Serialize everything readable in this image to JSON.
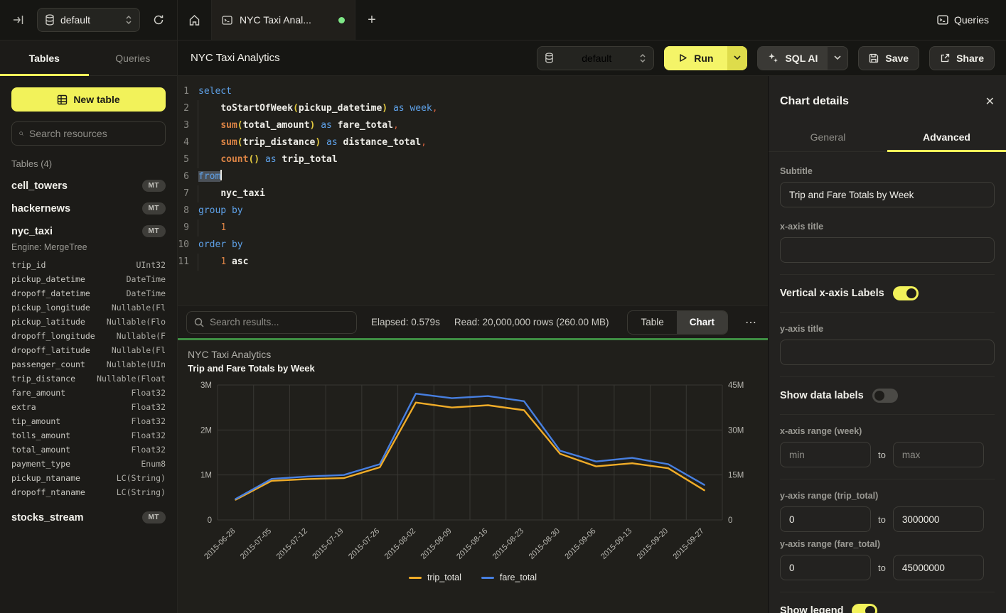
{
  "topbar": {
    "db_selector": "default",
    "tab_title": "NYC Taxi Anal...",
    "queries_label": "Queries",
    "plus_glyph": "+"
  },
  "icons": {
    "close_glyph": "✕",
    "ellipsis_glyph": "⋯"
  },
  "sidebar": {
    "tabs": {
      "tables": "Tables",
      "queries": "Queries"
    },
    "new_table_label": "New table",
    "search_placeholder": "Search resources",
    "section_label": "Tables (4)",
    "tables": [
      {
        "name": "cell_towers",
        "badge": "MT"
      },
      {
        "name": "hackernews",
        "badge": "MT"
      },
      {
        "name": "nyc_taxi",
        "badge": "MT",
        "engine": "Engine: MergeTree",
        "columns": [
          {
            "name": "trip_id",
            "type": "UInt32"
          },
          {
            "name": "pickup_datetime",
            "type": "DateTime"
          },
          {
            "name": "dropoff_datetime",
            "type": "DateTime"
          },
          {
            "name": "pickup_longitude",
            "type": "Nullable(Fl"
          },
          {
            "name": "pickup_latitude",
            "type": "Nullable(Flo"
          },
          {
            "name": "dropoff_longitude",
            "type": "Nullable(F"
          },
          {
            "name": "dropoff_latitude",
            "type": "Nullable(Fl"
          },
          {
            "name": "passenger_count",
            "type": "Nullable(UIn"
          },
          {
            "name": "trip_distance",
            "type": "Nullable(Float"
          },
          {
            "name": "fare_amount",
            "type": "Float32"
          },
          {
            "name": "extra",
            "type": "Float32"
          },
          {
            "name": "tip_amount",
            "type": "Float32"
          },
          {
            "name": "tolls_amount",
            "type": "Float32"
          },
          {
            "name": "total_amount",
            "type": "Float32"
          },
          {
            "name": "payment_type",
            "type": "Enum8"
          },
          {
            "name": "pickup_ntaname",
            "type": "LC(String)"
          },
          {
            "name": "dropoff_ntaname",
            "type": "LC(String)"
          }
        ]
      },
      {
        "name": "stocks_stream",
        "badge": "MT"
      }
    ]
  },
  "header": {
    "title": "NYC Taxi Analytics",
    "db_selector": "default",
    "run_label": "Run",
    "sql_ai_label": "SQL AI",
    "save_label": "Save",
    "share_label": "Share"
  },
  "editor": {
    "lines": [
      {
        "num": "1",
        "g": false,
        "tokens": [
          {
            "t": "select",
            "c": "kw"
          }
        ]
      },
      {
        "num": "2",
        "g": true,
        "tokens": [
          {
            "t": "    ",
            "c": "ws"
          },
          {
            "t": "toStartOfWeek",
            "c": "id"
          },
          {
            "t": "(",
            "c": "br"
          },
          {
            "t": "pickup_datetime",
            "c": "id"
          },
          {
            "t": ")",
            "c": "br"
          },
          {
            "t": " ",
            "c": "ws"
          },
          {
            "t": "as",
            "c": "kw"
          },
          {
            "t": " ",
            "c": "ws"
          },
          {
            "t": "week",
            "c": "kw"
          },
          {
            "t": ",",
            "c": "cm"
          }
        ]
      },
      {
        "num": "3",
        "g": true,
        "tokens": [
          {
            "t": "    ",
            "c": "ws"
          },
          {
            "t": "sum",
            "c": "fn"
          },
          {
            "t": "(",
            "c": "br"
          },
          {
            "t": "total_amount",
            "c": "id"
          },
          {
            "t": ")",
            "c": "br"
          },
          {
            "t": " ",
            "c": "ws"
          },
          {
            "t": "as",
            "c": "kw"
          },
          {
            "t": " ",
            "c": "ws"
          },
          {
            "t": "fare_total",
            "c": "id"
          },
          {
            "t": ",",
            "c": "cm"
          }
        ]
      },
      {
        "num": "4",
        "g": true,
        "tokens": [
          {
            "t": "    ",
            "c": "ws"
          },
          {
            "t": "sum",
            "c": "fn"
          },
          {
            "t": "(",
            "c": "br"
          },
          {
            "t": "trip_distance",
            "c": "id"
          },
          {
            "t": ")",
            "c": "br"
          },
          {
            "t": " ",
            "c": "ws"
          },
          {
            "t": "as",
            "c": "kw"
          },
          {
            "t": " ",
            "c": "ws"
          },
          {
            "t": "distance_total",
            "c": "id"
          },
          {
            "t": ",",
            "c": "cm"
          }
        ]
      },
      {
        "num": "5",
        "g": true,
        "tokens": [
          {
            "t": "    ",
            "c": "ws"
          },
          {
            "t": "count",
            "c": "fn"
          },
          {
            "t": "()",
            "c": "br"
          },
          {
            "t": " ",
            "c": "ws"
          },
          {
            "t": "as",
            "c": "kw"
          },
          {
            "t": " ",
            "c": "ws"
          },
          {
            "t": "trip_total",
            "c": "id"
          }
        ]
      },
      {
        "num": "6",
        "g": false,
        "tokens": [
          {
            "t": "from",
            "c": "kw sel"
          },
          {
            "t": "",
            "c": "caret"
          }
        ]
      },
      {
        "num": "7",
        "g": true,
        "tokens": [
          {
            "t": "    ",
            "c": "ws"
          },
          {
            "t": "nyc_taxi",
            "c": "id"
          }
        ]
      },
      {
        "num": "8",
        "g": false,
        "tokens": [
          {
            "t": "group by",
            "c": "kw"
          }
        ]
      },
      {
        "num": "9",
        "g": true,
        "tokens": [
          {
            "t": "    ",
            "c": "ws"
          },
          {
            "t": "1",
            "c": "nm"
          }
        ]
      },
      {
        "num": "10",
        "g": false,
        "tokens": [
          {
            "t": "order by",
            "c": "kw"
          }
        ]
      },
      {
        "num": "11",
        "g": true,
        "tokens": [
          {
            "t": "    ",
            "c": "ws"
          },
          {
            "t": "1",
            "c": "nm"
          },
          {
            "t": " ",
            "c": "ws"
          },
          {
            "t": "asc",
            "c": "id"
          }
        ]
      }
    ]
  },
  "results_bar": {
    "search_placeholder": "Search results...",
    "elapsed": "Elapsed: 0.579s",
    "read": "Read: 20,000,000 rows (260.00 MB)",
    "table_label": "Table",
    "chart_label": "Chart",
    "active_view": "Chart"
  },
  "chart_data": {
    "type": "line",
    "title": "NYC Taxi Analytics",
    "subtitle": "Trip and Fare Totals by Week",
    "x": [
      "2015-06-28",
      "2015-07-05",
      "2015-07-12",
      "2015-07-19",
      "2015-07-26",
      "2015-08-02",
      "2015-08-09",
      "2015-08-16",
      "2015-08-23",
      "2015-08-30",
      "2015-09-06",
      "2015-09-13",
      "2015-09-20",
      "2015-09-27"
    ],
    "series": [
      {
        "name": "trip_total",
        "color": "#f0ac28",
        "axis": "left",
        "values": [
          450000,
          870000,
          910000,
          930000,
          1170000,
          2610000,
          2500000,
          2550000,
          2440000,
          1470000,
          1190000,
          1260000,
          1150000,
          660000
        ]
      },
      {
        "name": "fare_total",
        "color": "#477fe0",
        "axis": "right",
        "values": [
          7000000,
          13700000,
          14500000,
          15000000,
          18600000,
          42100000,
          40600000,
          41300000,
          39600000,
          23100000,
          19500000,
          20700000,
          18600000,
          11700000
        ]
      }
    ],
    "left_axis": {
      "min": 0,
      "max": 3000000,
      "ticks": [
        0,
        1000000,
        2000000,
        3000000
      ],
      "tick_labels": [
        "0",
        "1M",
        "2M",
        "3M"
      ]
    },
    "right_axis": {
      "min": 0,
      "max": 45000000,
      "ticks": [
        0,
        15000000,
        30000000,
        45000000
      ],
      "tick_labels": [
        "0",
        "15M",
        "30M",
        "45M"
      ]
    },
    "x_labels_rotated": true,
    "grid": true,
    "legend_position": "bottom"
  },
  "panel": {
    "title": "Chart details",
    "tabs": {
      "general": "General",
      "advanced": "Advanced"
    },
    "active_tab": "Advanced",
    "fields": {
      "subtitle": {
        "label": "Subtitle",
        "value": "Trip and Fare Totals by Week"
      },
      "x_axis_title": {
        "label": "x-axis title",
        "value": ""
      },
      "vertical_x_labels": {
        "label": "Vertical x-axis Labels",
        "value": true
      },
      "y_axis_title": {
        "label": "y-axis title",
        "value": ""
      },
      "show_data_labels": {
        "label": "Show data labels",
        "value": false
      },
      "x_axis_range": {
        "label": "x-axis range (week)",
        "min_placeholder": "min",
        "max_placeholder": "max",
        "to_label": "to"
      },
      "y_axis_range_trip": {
        "label": "y-axis range (trip_total)",
        "min": "0",
        "max": "3000000",
        "to_label": "to"
      },
      "y_axis_range_fare": {
        "label": "y-axis range (fare_total)",
        "min": "0",
        "max": "45000000",
        "to_label": "to"
      },
      "show_legend": {
        "label": "Show legend",
        "value": true
      }
    }
  },
  "colors": {
    "accent_yellow": "#f2f25a",
    "series_orange": "#f0ac28",
    "series_blue": "#477fe0",
    "success_green": "#3e8e43",
    "tab_green_dot": "#7ee787"
  }
}
